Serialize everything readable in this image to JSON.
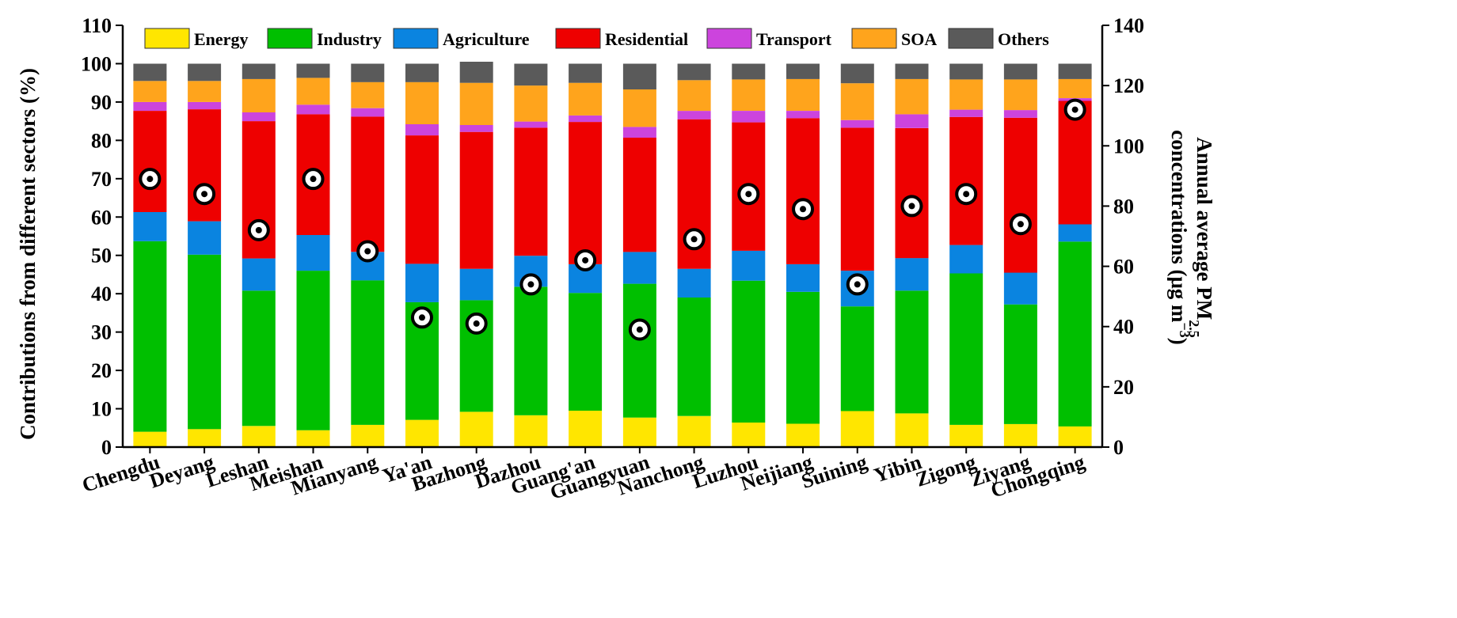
{
  "chart_data": {
    "type": "bar",
    "stacked": true,
    "categories": [
      "Chengdu",
      "Deyang",
      "Leshan",
      "Meishan",
      "Mianyang",
      "Ya'an",
      "Bazhong",
      "Dazhou",
      "Guang'an",
      "Guangyuan",
      "Nanchong",
      "Luzhou",
      "Neijiang",
      "Suining",
      "Yibin",
      "Zigong",
      "Ziyang",
      "Chongqing"
    ],
    "series": [
      {
        "name": "Energy",
        "color": "#FFE600",
        "values": [
          4.0,
          4.7,
          5.5,
          4.4,
          5.8,
          7.1,
          9.2,
          8.3,
          9.5,
          7.7,
          8.1,
          6.4,
          6.1,
          9.4,
          8.8,
          5.8,
          6.0,
          5.4
        ]
      },
      {
        "name": "Industry",
        "color": "#00BF00",
        "values": [
          49.7,
          45.5,
          35.3,
          41.6,
          37.7,
          30.7,
          29.1,
          33.5,
          30.7,
          34.9,
          30.9,
          37.0,
          34.4,
          27.3,
          32.0,
          39.5,
          31.2,
          48.2
        ]
      },
      {
        "name": "Agriculture",
        "color": "#0A84E0",
        "values": [
          7.6,
          8.7,
          8.4,
          9.3,
          7.4,
          10.0,
          8.2,
          8.1,
          7.5,
          8.3,
          7.5,
          7.8,
          7.2,
          9.3,
          8.5,
          7.4,
          8.3,
          4.5
        ]
      },
      {
        "name": "Residential",
        "color": "#EE0000",
        "values": [
          26.4,
          29.2,
          35.8,
          31.5,
          35.3,
          33.5,
          35.7,
          33.4,
          37.1,
          29.8,
          39.0,
          33.5,
          38.1,
          37.3,
          33.9,
          33.4,
          40.4,
          32.2
        ]
      },
      {
        "name": "Transport",
        "color": "#CC44DD",
        "values": [
          2.3,
          1.9,
          2.3,
          2.5,
          2.2,
          2.9,
          1.8,
          1.6,
          1.7,
          2.8,
          2.2,
          3.0,
          1.9,
          2.0,
          3.6,
          1.9,
          2.0,
          0.7
        ]
      },
      {
        "name": "SOA",
        "color": "#FFA41C",
        "values": [
          5.5,
          5.5,
          8.7,
          7.0,
          6.8,
          11.0,
          11.0,
          9.4,
          8.5,
          9.8,
          8.0,
          8.2,
          8.3,
          9.6,
          9.2,
          7.9,
          8.0,
          5.0
        ]
      },
      {
        "name": "Others",
        "color": "#5A5A5A",
        "values": [
          4.5,
          4.5,
          4.0,
          3.7,
          4.8,
          4.8,
          5.5,
          5.7,
          5.0,
          6.7,
          4.3,
          4.1,
          4.0,
          5.1,
          4.0,
          4.1,
          4.1,
          4.0
        ]
      }
    ],
    "pm25": {
      "values": [
        89,
        84,
        72,
        89,
        65,
        43,
        41,
        54,
        62,
        39,
        69,
        84,
        79,
        54,
        80,
        84,
        74,
        112
      ]
    },
    "ylabel": "Contributions from different sectors (%)",
    "ylim": [
      0,
      110
    ],
    "yticks": [
      0,
      10,
      20,
      30,
      40,
      50,
      60,
      70,
      80,
      90,
      100,
      110
    ],
    "y2label_line1": "Annual average PM",
    "y2label_sub": "2.5",
    "y2label_line2": "concentrations (μg m",
    "y2label_sup": "−3",
    "y2label_close": ")",
    "y2lim": [
      0,
      140
    ],
    "y2ticks": [
      0,
      20,
      40,
      60,
      80,
      100,
      120,
      140
    ],
    "legend_position": "top"
  }
}
